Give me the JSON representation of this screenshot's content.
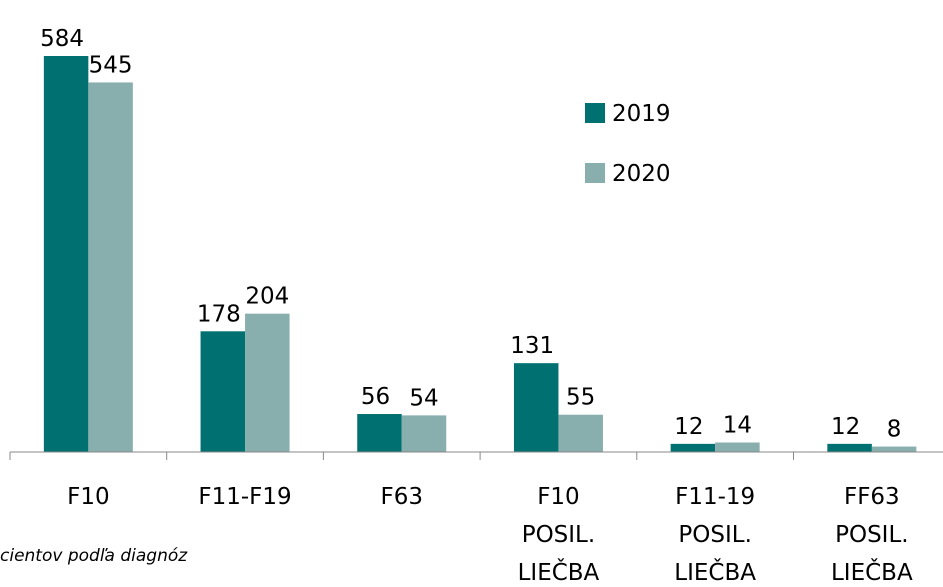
{
  "chart_data": {
    "type": "bar",
    "categories": [
      "F10",
      "F11-F19",
      "F63",
      "F10 POSIL. LIEČBA",
      "F11-19 POSIL. LIEČBA",
      "FF63 POSIL. LIEČBA"
    ],
    "series": [
      {
        "name": "2019",
        "color": "#007070",
        "values": [
          584,
          178,
          56,
          131,
          12,
          12
        ]
      },
      {
        "name": "2020",
        "color": "#88aeae",
        "values": [
          545,
          204,
          54,
          55,
          14,
          8
        ]
      }
    ],
    "legend": "upper right",
    "caption": "cientov podľa diagnóz"
  }
}
